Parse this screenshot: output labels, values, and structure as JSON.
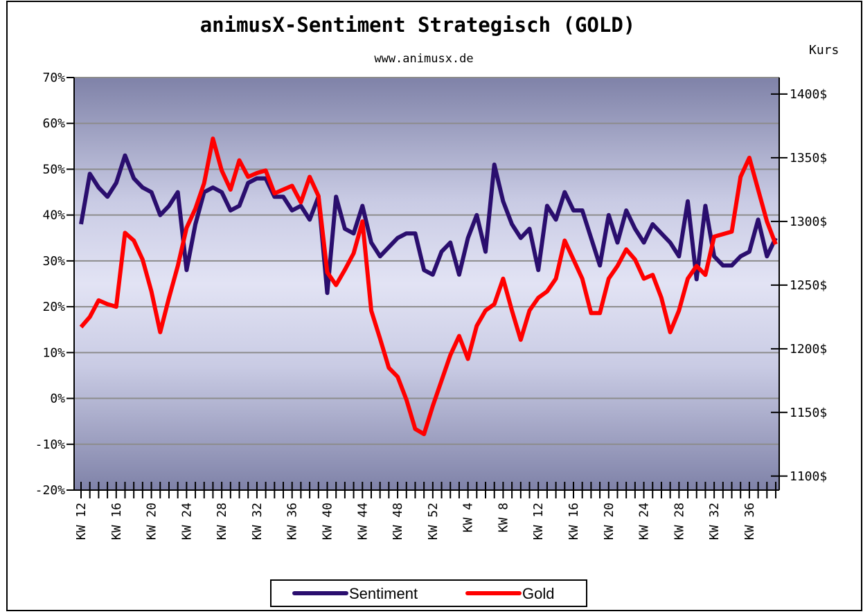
{
  "chart_data": {
    "type": "line",
    "title": "animusX-Sentiment Strategisch (GOLD)",
    "subtitle": "www.animusx.de",
    "y2_label": "Kurs",
    "categories": [
      "KW 12",
      null,
      null,
      null,
      "KW 16",
      null,
      null,
      null,
      "KW 20",
      null,
      null,
      null,
      "KW 24",
      null,
      null,
      null,
      "KW 28",
      null,
      null,
      null,
      "KW 32",
      null,
      null,
      null,
      "KW 36",
      null,
      null,
      null,
      "KW 40",
      null,
      null,
      null,
      "KW 44",
      null,
      null,
      null,
      "KW 48",
      null,
      null,
      null,
      "KW 52",
      null,
      null,
      null,
      "KW 4",
      null,
      null,
      null,
      "KW 8",
      null,
      null,
      null,
      "KW 12",
      null,
      null,
      null,
      "KW 16",
      null,
      null,
      null,
      "KW 20",
      null,
      null,
      null,
      "KW 24",
      null,
      null,
      null,
      "KW 28",
      null,
      null,
      null,
      "KW 32",
      null,
      null,
      null,
      "KW 36",
      null,
      null,
      null
    ],
    "series": [
      {
        "name": "Sentiment",
        "color": "#2a0e6e",
        "values": [
          38,
          49,
          46,
          44,
          47,
          53,
          48,
          46,
          45,
          40,
          42,
          45,
          28,
          38,
          45,
          46,
          45,
          41,
          42,
          47,
          48,
          48,
          44,
          44,
          41,
          42,
          39,
          44,
          23,
          44,
          37,
          36,
          42,
          34,
          31,
          33,
          35,
          36,
          36,
          28,
          27,
          32,
          34,
          27,
          35,
          40,
          32,
          51,
          43,
          38,
          35,
          37,
          28,
          42,
          39,
          45,
          41,
          41,
          35,
          29,
          40,
          34,
          41,
          37,
          34,
          38,
          36,
          34,
          31,
          43,
          26,
          42,
          31,
          29,
          29,
          31,
          32,
          39,
          31,
          35
        ]
      },
      {
        "name": "Gold",
        "color": "#ff0000",
        "axis": "y2",
        "values": [
          1217,
          1225,
          1238,
          1235,
          1233,
          1291,
          1285,
          1270,
          1245,
          1213,
          1240,
          1265,
          1295,
          1310,
          1330,
          1365,
          1340,
          1325,
          1348,
          1335,
          1338,
          1340,
          1322,
          1325,
          1328,
          1315,
          1335,
          1320,
          1260,
          1250,
          1262,
          1275,
          1300,
          1230,
          1208,
          1185,
          1178,
          1160,
          1137,
          1133,
          1155,
          1175,
          1195,
          1210,
          1192,
          1218,
          1230,
          1235,
          1255,
          1230,
          1207,
          1230,
          1240,
          1245,
          1255,
          1285,
          1270,
          1255,
          1228,
          1228,
          1255,
          1265,
          1278,
          1270,
          1255,
          1258,
          1240,
          1213,
          1230,
          1255,
          1265,
          1258,
          1288,
          1290,
          1292,
          1335,
          1350,
          1325,
          1300,
          1282
        ]
      }
    ],
    "ylim": [
      -20,
      70
    ],
    "yticks": [
      {
        "value": -20,
        "label": "-20%"
      },
      {
        "value": -10,
        "label": "-10%"
      },
      {
        "value": 0,
        "label": "0%"
      },
      {
        "value": 10,
        "label": "10%"
      },
      {
        "value": 20,
        "label": "20%"
      },
      {
        "value": 30,
        "label": "30%"
      },
      {
        "value": 40,
        "label": "40%"
      },
      {
        "value": 50,
        "label": "50%"
      },
      {
        "value": 60,
        "label": "60%"
      },
      {
        "value": 70,
        "label": "70%"
      }
    ],
    "y2lim": [
      1089,
      1413
    ],
    "y2ticks": [
      {
        "value": 1100,
        "label": "1100$"
      },
      {
        "value": 1150,
        "label": "1150$"
      },
      {
        "value": 1200,
        "label": "1200$"
      },
      {
        "value": 1250,
        "label": "1250$"
      },
      {
        "value": 1300,
        "label": "1300$"
      },
      {
        "value": 1350,
        "label": "1350$"
      },
      {
        "value": 1400,
        "label": "1400$"
      }
    ],
    "grid": true,
    "legend": "bottom"
  }
}
